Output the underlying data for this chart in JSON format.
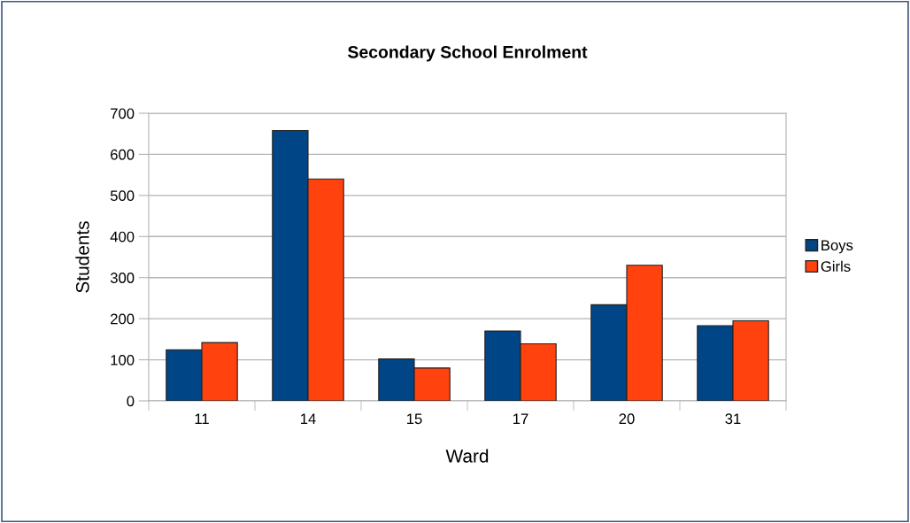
{
  "chart_data": {
    "type": "bar",
    "title": "Secondary School Enrolment",
    "xlabel": "Ward",
    "ylabel": "Students",
    "categories": [
      "11",
      "14",
      "15",
      "17",
      "20",
      "31"
    ],
    "series": [
      {
        "name": "Boys",
        "color": "#004586",
        "values": [
          124,
          658,
          102,
          170,
          234,
          183
        ]
      },
      {
        "name": "Girls",
        "color": "#ff420e",
        "values": [
          142,
          540,
          80,
          139,
          330,
          195
        ]
      }
    ],
    "ylim": [
      0,
      700
    ],
    "yticks": [
      0,
      100,
      200,
      300,
      400,
      500,
      600,
      700
    ],
    "grid": "y",
    "legend": "right"
  }
}
